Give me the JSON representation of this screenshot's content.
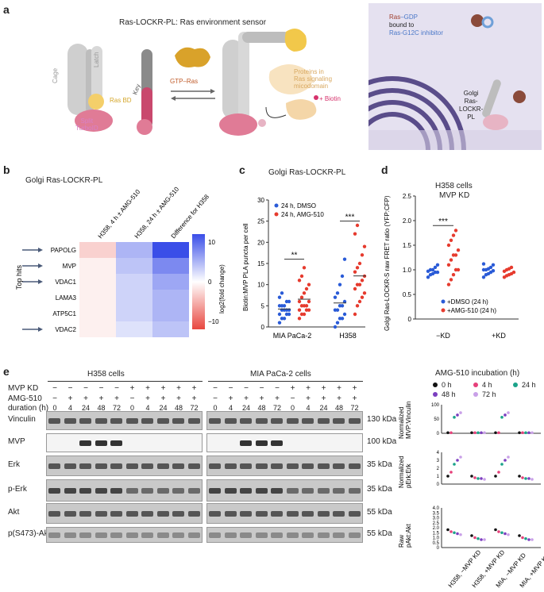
{
  "panel_labels": {
    "a": "a",
    "b": "b",
    "c": "c",
    "d": "d",
    "e": "e"
  },
  "panel_a": {
    "title": "Ras-LOCKR-PL: Ras environment sensor",
    "cage": "Cage",
    "latch": "Latch",
    "key": "Key",
    "ras_bd": "Ras BD",
    "split_turboid": "Split\nTurboID",
    "gtp_ras": "GTP–Ras",
    "proteins": "Proteins in\nRas signaling\nmicodomain",
    "biotin": "+ Biotin",
    "ras_gdp_a": "Ras",
    "ras_gdp_b": "–GDP",
    "bound_to": "bound to",
    "inhibitor": "Ras-G12C inhibitor",
    "golgi_label": "Golgi\nRas-\nLOCKR-\nPL"
  },
  "panel_b": {
    "title": "Golgi Ras-LOCKR-PL",
    "columns": [
      "H358, 4 h ± AMG-510",
      "H358, 24 h ± AMG-510",
      "Difference for H358"
    ],
    "rows": [
      "PAPOLG",
      "MVP",
      "VDAC1",
      "LAMA3",
      "ATP5C1",
      "VDAC2"
    ],
    "arrows": [
      true,
      true,
      true,
      false,
      false,
      true
    ],
    "side_label": "Top hits",
    "colorbar_label": "log2(fold change)",
    "colorbar_ticks": [
      "10",
      "0",
      "−10"
    ],
    "values": [
      [
        -3,
        5,
        12
      ],
      [
        -1,
        4,
        8
      ],
      [
        -1,
        3,
        6
      ],
      [
        -1,
        3,
        5
      ],
      [
        -1,
        3,
        5
      ],
      [
        -1,
        2,
        4
      ]
    ],
    "colors": {
      "neg": "#e8473f",
      "pos": "#3a4ee8"
    }
  },
  "panel_c": {
    "title": "Golgi Ras-LOCKR-PL",
    "ylabel": "Biotin:MVP PLA puncta per cell",
    "yticks": [
      "0",
      "5",
      "10",
      "15",
      "20",
      "25",
      "30"
    ],
    "categories": [
      "MIA PaCa-2",
      "H358"
    ],
    "legend": [
      "24 h, DMSO",
      "24 h, AMG-510"
    ],
    "sig": [
      "**",
      "***"
    ],
    "colors": {
      "dmso": "#2a5bd7",
      "amg": "#e63b2e"
    }
  },
  "panel_d": {
    "title_line1": "H358 cells",
    "title_line2": "MVP KD",
    "ylabel": "Golgi Ras-LOCKR-S raw FRET ratio (YFP:CFP)",
    "yticks": [
      "0",
      "0.5",
      "1.0",
      "1.5",
      "2.0",
      "2.5"
    ],
    "categories": [
      "−KD",
      "+KD"
    ],
    "legend": [
      "+DMSO (24 h)",
      "+AMG-510 (24 h)"
    ],
    "sig": "***"
  },
  "panel_e": {
    "h358": "H358 cells",
    "mia": "MIA PaCa-2 cells",
    "mvp_kd_label": "MVP KD",
    "amg_label": "AMG-510",
    "duration_label": "duration (h)",
    "kd_row": [
      "−",
      "−",
      "−",
      "−",
      "−",
      "+",
      "+",
      "+",
      "+",
      "+"
    ],
    "dur_row": [
      "0",
      "4",
      "24",
      "48",
      "72",
      "0",
      "4",
      "24",
      "48",
      "72"
    ],
    "blots": [
      {
        "name": "Vinculin",
        "kda": "130 kDa"
      },
      {
        "name": "MVP",
        "kda": "100 kDa"
      },
      {
        "name": "Erk",
        "kda": "35 kDa"
      },
      {
        "name": "p-Erk",
        "kda": "35 kDa"
      },
      {
        "name": "Akt",
        "kda": "55 kDa"
      },
      {
        "name": "p(S473)-Akt",
        "kda": "55 kDa"
      }
    ],
    "incubation_title": "AMG-510 incubation (h)",
    "legend": [
      "0 h",
      "4 h",
      "24 h",
      "48 h",
      "72 h"
    ],
    "legend_colors": [
      "#111111",
      "#e6407a",
      "#1ba38a",
      "#7b3fbf",
      "#c9a0e8"
    ],
    "y1": "Normalized\nMVP:Vinculin",
    "y2": "Normalized\npErk:Erk",
    "y3": "Raw\npAkt:Akt",
    "y1ticks": [
      "0",
      "50",
      "100"
    ],
    "y2ticks": [
      "0",
      "1",
      "2",
      "3",
      "4"
    ],
    "y3ticks": [
      "0",
      "0.5",
      "1.0",
      "1.5",
      "2.0",
      "2.5",
      "3.0",
      "3.5",
      "4.0"
    ],
    "groups": [
      "H358, −MVP KD",
      "H358, +MVP KD",
      "MIA, −MVP KD",
      "MIA, +MVP KD"
    ]
  }
}
